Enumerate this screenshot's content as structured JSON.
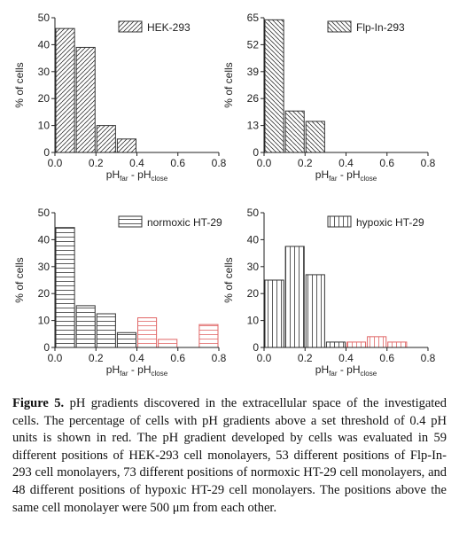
{
  "chart_data": [
    {
      "type": "histogram",
      "legend": "HEK-293",
      "hatch": "diag-up",
      "ylabel": "% of cells",
      "xlabel": [
        "pH",
        "far",
        " - pH",
        "close"
      ],
      "bins": [
        0,
        0.1,
        0.2,
        0.3,
        0.4
      ],
      "values": [
        46,
        39,
        10,
        5
      ],
      "colors": [
        "#333333",
        "#333333",
        "#333333",
        "#333333"
      ],
      "xlim": [
        0,
        0.8
      ],
      "xticks": [
        {
          "value": 0,
          "label": "0.0"
        },
        0.2,
        0.4,
        0.6,
        0.8
      ],
      "ylim": [
        0,
        50
      ],
      "yticks": [
        0,
        10,
        20,
        30,
        40,
        50
      ]
    },
    {
      "type": "histogram",
      "legend": "Flp-In-293",
      "hatch": "diag-down",
      "ylabel": "% of cells",
      "xlabel": [
        "pH",
        "far",
        " - pH",
        "close"
      ],
      "bins": [
        0,
        0.1,
        0.2,
        0.3
      ],
      "values": [
        64,
        20,
        15
      ],
      "colors": [
        "#333333",
        "#333333",
        "#333333"
      ],
      "xlim": [
        0,
        0.8
      ],
      "xticks": [
        {
          "value": 0,
          "label": "0.0"
        },
        0.2,
        0.4,
        0.6,
        0.8
      ],
      "ylim": [
        0,
        65
      ],
      "yticks": [
        0,
        13,
        26,
        39,
        52,
        65
      ]
    },
    {
      "type": "histogram",
      "legend": "normoxic HT-29",
      "hatch": "horizontal",
      "ylabel": "% of cells",
      "xlabel": [
        "pH",
        "far",
        " - pH",
        "close"
      ],
      "bins": [
        0,
        0.1,
        0.2,
        0.3,
        0.4,
        0.5,
        0.6,
        0.7,
        0.8
      ],
      "values": [
        44.5,
        15.5,
        12.5,
        5.5,
        11,
        3,
        0,
        8.5
      ],
      "colors": [
        "#333333",
        "#333333",
        "#333333",
        "#333333",
        "#e06666",
        "#e06666",
        "#e06666",
        "#e06666"
      ],
      "xlim": [
        0,
        0.8
      ],
      "xticks": [
        {
          "value": 0,
          "label": "0.0"
        },
        0.2,
        0.4,
        0.6,
        0.8
      ],
      "ylim": [
        0,
        50
      ],
      "yticks": [
        0,
        10,
        20,
        30,
        40,
        50
      ]
    },
    {
      "type": "histogram",
      "legend": "hypoxic HT-29",
      "hatch": "vertical",
      "ylabel": "% of cells",
      "xlabel": [
        "pH",
        "far",
        " - pH",
        "close"
      ],
      "bins": [
        0,
        0.1,
        0.2,
        0.3,
        0.4,
        0.5,
        0.6,
        0.7
      ],
      "values": [
        25,
        37.5,
        27,
        2,
        2,
        4,
        2
      ],
      "colors": [
        "#333333",
        "#333333",
        "#333333",
        "#333333",
        "#e06666",
        "#e06666",
        "#e06666"
      ],
      "xlim": [
        0,
        0.8
      ],
      "xticks": [
        {
          "value": 0,
          "label": "0.0"
        },
        0.2,
        0.4,
        0.6,
        0.8
      ],
      "ylim": [
        0,
        50
      ],
      "yticks": [
        0,
        10,
        20,
        30,
        40,
        50
      ]
    }
  ],
  "caption": {
    "label": "Figure 5.",
    "text": "pH gradients discovered in the extracellular space of the investigated cells. The percentage of cells with pH gradients above a set threshold of 0.4 pH units is shown in red. The pH gradient developed by cells was evaluated in 59 different positions of HEK-293 cell monolayers, 53 different positions of Flp-In-293 cell monolayers, 73 different positions of normoxic HT-29 cell monolayers, and 48 different positions of hypoxic HT-29 cell monolayers. The positions above the same cell monolayer were 500 μm from each other."
  }
}
